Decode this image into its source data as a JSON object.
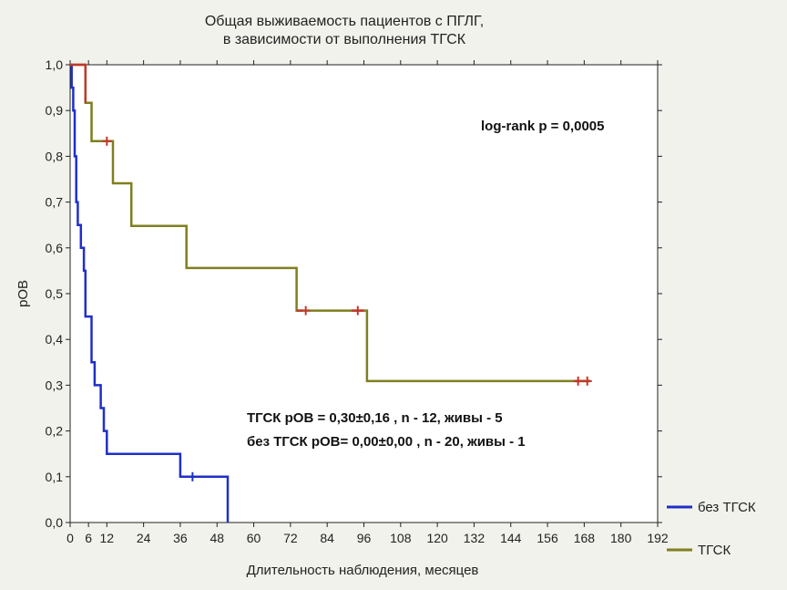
{
  "chart_data": {
    "type": "line",
    "step": true,
    "title_lines": [
      "Общая выживаемость пациентов с ПГЛГ,",
      "в зависимости от выполнения ТГСК"
    ],
    "xlabel": "Длительность наблюдения, месяцев",
    "ylabel": "рОВ",
    "xlim": [
      0,
      192
    ],
    "ylim": [
      0,
      1
    ],
    "x_ticks": [
      "0",
      "6",
      "12",
      "24",
      "36",
      "48",
      "60",
      "72",
      "84",
      "96",
      "108",
      "120",
      "132",
      "144",
      "156",
      "168",
      "180",
      "192"
    ],
    "x_tick_values": [
      0,
      6,
      12,
      24,
      36,
      48,
      60,
      72,
      84,
      96,
      108,
      120,
      132,
      144,
      156,
      168,
      180,
      192
    ],
    "y_ticks": [
      "0,0",
      "0,1",
      "0,2",
      "0,3",
      "0,4",
      "0,5",
      "0,6",
      "0,7",
      "0,8",
      "0,9",
      "1,0"
    ],
    "y_tick_values": [
      0,
      0.1,
      0.2,
      0.3,
      0.4,
      0.5,
      0.6,
      0.7,
      0.8,
      0.9,
      1.0
    ],
    "annotation_logrank": "log-rank p = 0,0005",
    "annotation_stats": [
      "ТГСК рОВ = 0,30±0,16 , n - 12, живы - 5",
      "без ТГСК рОВ= 0,00±0,00 , n - 20, живы - 1"
    ],
    "series": [
      {
        "name": "без ТГСК",
        "color": "#1f2fc8",
        "points": [
          [
            0,
            1.0
          ],
          [
            0.5,
            1.0
          ],
          [
            0.5,
            0.95
          ],
          [
            1,
            0.95
          ],
          [
            1,
            0.9
          ],
          [
            1.5,
            0.9
          ],
          [
            1.5,
            0.8
          ],
          [
            2,
            0.8
          ],
          [
            2,
            0.7
          ],
          [
            2.5,
            0.7
          ],
          [
            2.5,
            0.65
          ],
          [
            3.5,
            0.65
          ],
          [
            3.5,
            0.6
          ],
          [
            4.5,
            0.6
          ],
          [
            4.5,
            0.55
          ],
          [
            5,
            0.55
          ],
          [
            5,
            0.45
          ],
          [
            7,
            0.45
          ],
          [
            7,
            0.35
          ],
          [
            8,
            0.35
          ],
          [
            8,
            0.3
          ],
          [
            10,
            0.3
          ],
          [
            10,
            0.25
          ],
          [
            11,
            0.25
          ],
          [
            11,
            0.2
          ],
          [
            12,
            0.2
          ],
          [
            12,
            0.15
          ],
          [
            36,
            0.15
          ],
          [
            36,
            0.1
          ],
          [
            51.5,
            0.1
          ],
          [
            51.5,
            0.0
          ]
        ],
        "censored": [
          [
            40,
            0.1
          ]
        ]
      },
      {
        "name": "ТГСК",
        "color": "#7f7f1f",
        "points": [
          [
            0,
            1.0
          ],
          [
            5,
            1.0
          ],
          [
            5,
            0.917
          ],
          [
            7,
            0.917
          ],
          [
            7,
            0.833
          ],
          [
            14,
            0.833
          ],
          [
            14,
            0.741
          ],
          [
            20,
            0.741
          ],
          [
            20,
            0.648
          ],
          [
            38,
            0.648
          ],
          [
            38,
            0.556
          ],
          [
            74,
            0.556
          ],
          [
            74,
            0.463
          ],
          [
            97,
            0.463
          ],
          [
            97,
            0.309
          ],
          [
            170,
            0.309
          ]
        ],
        "red_segments": [
          [
            [
              0,
              1.0
            ],
            [
              5,
              1.0
            ],
            [
              5,
              0.917
            ]
          ],
          [
            [
              74,
              0.463
            ],
            [
              76,
              0.463
            ]
          ],
          [
            [
              92,
              0.463
            ],
            [
              96,
              0.463
            ]
          ],
          [
            [
              165,
              0.309
            ],
            [
              170,
              0.309
            ]
          ]
        ],
        "censored": [
          [
            12,
            0.833
          ],
          [
            77,
            0.463
          ],
          [
            94,
            0.463
          ],
          [
            166,
            0.309
          ],
          [
            169,
            0.309
          ]
        ]
      }
    ]
  }
}
